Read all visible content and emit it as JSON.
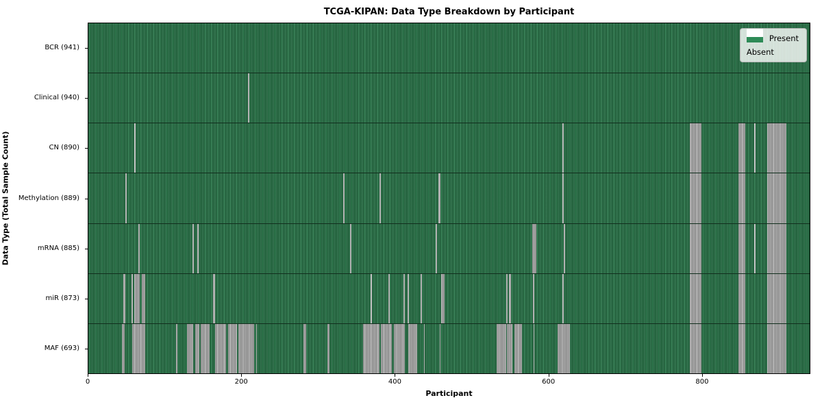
{
  "title": "TCGA-KIPAN: Data Type Breakdown by Participant",
  "xlabel": "Participant",
  "ylabel": "Data Type (Total Sample Count)",
  "legend": {
    "present_label": "Present",
    "absent_label": "Absent"
  },
  "colors": {
    "present": "#2E8B57",
    "absent": "#ffffff",
    "absent_rendered_wide": "#b9b9b9",
    "absent_rendered_thin": "#d2d2d2",
    "plot_border": "#000000"
  },
  "chart_data": {
    "type": "heatmap",
    "title": "TCGA-KIPAN: Data Type Breakdown by Participant",
    "xlabel": "Participant",
    "ylabel": "Data Type (Total Sample Count)",
    "x_range": [
      0,
      941
    ],
    "x_ticks": [
      0,
      200,
      400,
      600,
      800
    ],
    "legend_entries": [
      "Present",
      "Absent"
    ],
    "legend_position": "upper right",
    "grid": false,
    "rows": [
      {
        "label": "BCR (941)",
        "data_type": "BCR",
        "total_sample_count": 941,
        "absent_ranges": []
      },
      {
        "label": "Clinical (940)",
        "data_type": "Clinical",
        "total_sample_count": 940,
        "absent_ranges": [
          [
            208,
            210
          ]
        ]
      },
      {
        "label": "CN (890)",
        "data_type": "CN",
        "total_sample_count": 890,
        "absent_ranges": [
          [
            60,
            62
          ],
          [
            618,
            620
          ],
          [
            785,
            800
          ],
          [
            848,
            857
          ],
          [
            869,
            870
          ],
          [
            886,
            911
          ]
        ]
      },
      {
        "label": "Methylation (889)",
        "data_type": "Methylation",
        "total_sample_count": 889,
        "absent_ranges": [
          [
            48,
            50
          ],
          [
            332,
            334
          ],
          [
            380,
            382
          ],
          [
            457,
            459
          ],
          [
            618,
            620
          ],
          [
            785,
            800
          ],
          [
            848,
            857
          ],
          [
            886,
            911
          ]
        ]
      },
      {
        "label": "mRNA (885)",
        "data_type": "mRNA",
        "total_sample_count": 885,
        "absent_ranges": [
          [
            65,
            67
          ],
          [
            136,
            138
          ],
          [
            142,
            144
          ],
          [
            341,
            343
          ],
          [
            453,
            455
          ],
          [
            579,
            584
          ],
          [
            620,
            622
          ],
          [
            785,
            800
          ],
          [
            848,
            857
          ],
          [
            869,
            870
          ],
          [
            886,
            911
          ]
        ]
      },
      {
        "label": "miR (873)",
        "data_type": "miR",
        "total_sample_count": 873,
        "absent_ranges": [
          [
            46,
            48
          ],
          [
            56,
            58
          ],
          [
            60,
            67
          ],
          [
            70,
            74
          ],
          [
            163,
            165
          ],
          [
            368,
            370
          ],
          [
            391,
            393
          ],
          [
            411,
            413
          ],
          [
            416,
            418
          ],
          [
            433,
            435
          ],
          [
            460,
            465
          ],
          [
            545,
            547
          ],
          [
            549,
            551
          ],
          [
            580,
            582
          ],
          [
            618,
            620
          ],
          [
            785,
            800
          ],
          [
            848,
            857
          ],
          [
            886,
            911
          ]
        ]
      },
      {
        "label": "MAF (693)",
        "data_type": "MAF",
        "total_sample_count": 693,
        "absent_ranges": [
          [
            44,
            47
          ],
          [
            57,
            74
          ],
          [
            114,
            116
          ],
          [
            129,
            137
          ],
          [
            139,
            145
          ],
          [
            147,
            158
          ],
          [
            165,
            180
          ],
          [
            182,
            194
          ],
          [
            196,
            216
          ],
          [
            219,
            220
          ],
          [
            281,
            284
          ],
          [
            312,
            315
          ],
          [
            358,
            380
          ],
          [
            382,
            396
          ],
          [
            399,
            413
          ],
          [
            417,
            429
          ],
          [
            438,
            439
          ],
          [
            458,
            459
          ],
          [
            533,
            545
          ],
          [
            546,
            553
          ],
          [
            556,
            566
          ],
          [
            581,
            582
          ],
          [
            612,
            628
          ],
          [
            785,
            800
          ],
          [
            848,
            857
          ],
          [
            886,
            911
          ]
        ]
      }
    ]
  }
}
